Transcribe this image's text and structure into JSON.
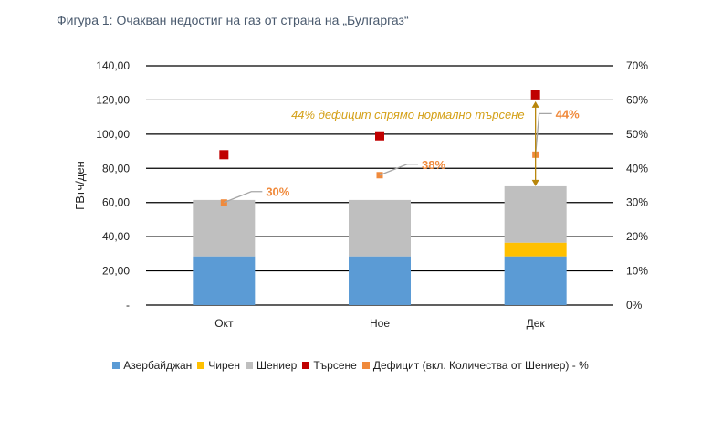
{
  "title": "Фигура 1: Очакван недостиг на газ от страна на „Булгаргаз“",
  "chart_data": {
    "type": "bar",
    "stacked": true,
    "categories": [
      "Окт",
      "Ное",
      "Дек"
    ],
    "series": [
      {
        "name": "Азербайджан",
        "kind": "bar",
        "color": "#5b9bd5",
        "values": [
          28.5,
          28.5,
          28.5
        ]
      },
      {
        "name": "Чирен",
        "kind": "bar",
        "color": "#ffc000",
        "values": [
          0,
          0,
          8
        ]
      },
      {
        "name": "Шениер",
        "kind": "bar",
        "color": "#bfbfbf",
        "values": [
          33,
          33,
          33
        ]
      },
      {
        "name": "Търсене",
        "kind": "marker",
        "color": "#c00000",
        "values": [
          88,
          99,
          123
        ]
      },
      {
        "name": "Дефицит (вкл. Количества от Шениер) - %",
        "kind": "marker-secondary",
        "color": "#f08a3c",
        "values": [
          30,
          38,
          44
        ]
      }
    ],
    "data_labels": [
      "30%",
      "38%",
      "44%"
    ],
    "ylabel": "ГВтч/ден",
    "ylim": [
      0,
      140
    ],
    "y2lim": [
      0,
      70
    ],
    "y_ticks": [
      "-",
      "20,00",
      "40,00",
      "60,00",
      "80,00",
      "100,00",
      "120,00",
      "140,00"
    ],
    "y2_ticks": [
      "0%",
      "10%",
      "20%",
      "30%",
      "40%",
      "50%",
      "60%",
      "70%"
    ],
    "annotation": "44% дефицит спрямо нормално търсене",
    "legend_position": "bottom"
  }
}
